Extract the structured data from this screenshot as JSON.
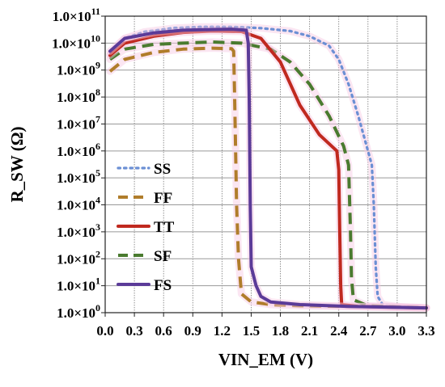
{
  "chart_data": {
    "type": "line",
    "xlabel": "VIN_EM (V)",
    "ylabel": "R_SW (Ω)",
    "xlim": [
      0.0,
      3.3
    ],
    "ylim_log10": [
      0,
      11
    ],
    "y_scale": "log",
    "x_ticks": [
      "0.0",
      "0.3",
      "0.6",
      "0.9",
      "1.2",
      "1.5",
      "1.8",
      "2.1",
      "2.4",
      "2.7",
      "3.0",
      "3.3"
    ],
    "y_ticks": [
      {
        "mant": "1.0×10",
        "exp": "0"
      },
      {
        "mant": "1.0×10",
        "exp": "1"
      },
      {
        "mant": "1.0×10",
        "exp": "2"
      },
      {
        "mant": "1.0×10",
        "exp": "3"
      },
      {
        "mant": "1.0×10",
        "exp": "4"
      },
      {
        "mant": "1.0×10",
        "exp": "5"
      },
      {
        "mant": "1.0×10",
        "exp": "6"
      },
      {
        "mant": "1.0×10",
        "exp": "7"
      },
      {
        "mant": "1.0×10",
        "exp": "8"
      },
      {
        "mant": "1.0×10",
        "exp": "9"
      },
      {
        "mant": "1.0×10",
        "exp": "10"
      },
      {
        "mant": "1.0×10",
        "exp": "11"
      }
    ],
    "grid": true,
    "legend_placement": "left-center",
    "series": [
      {
        "name": "SS",
        "color": "#6b8fd4",
        "dash": "dotted",
        "points": [
          [
            0.05,
            3800000000.0
          ],
          [
            0.2,
            15000000000.0
          ],
          [
            0.4,
            26000000000.0
          ],
          [
            0.7,
            36000000000.0
          ],
          [
            1.0,
            40000000000.0
          ],
          [
            1.3,
            40000000000.0
          ],
          [
            1.6,
            36000000000.0
          ],
          [
            1.9,
            28000000000.0
          ],
          [
            2.1,
            18000000000.0
          ],
          [
            2.3,
            8000000000.0
          ],
          [
            2.4,
            2500000000.0
          ],
          [
            2.5,
            300000000.0
          ],
          [
            2.6,
            20000000.0
          ],
          [
            2.7,
            1000000.0
          ],
          [
            2.74,
            300000.0
          ],
          [
            2.76,
            10000.0
          ],
          [
            2.78,
            50
          ],
          [
            2.8,
            4
          ],
          [
            2.85,
            2
          ],
          [
            3.0,
            1.7
          ],
          [
            3.3,
            1.5
          ]
        ]
      },
      {
        "name": "FF",
        "color": "#b07d2b",
        "dash": "dashed",
        "points": [
          [
            0.05,
            900000000.0
          ],
          [
            0.2,
            2500000000.0
          ],
          [
            0.5,
            4500000000.0
          ],
          [
            0.8,
            6000000000.0
          ],
          [
            1.1,
            6500000000.0
          ],
          [
            1.3,
            6200000000.0
          ],
          [
            1.32,
            5000000000.0
          ],
          [
            1.33,
            100000000.0
          ],
          [
            1.35,
            10000.0
          ],
          [
            1.37,
            100
          ],
          [
            1.4,
            5
          ],
          [
            1.5,
            2.5
          ],
          [
            1.7,
            2
          ],
          [
            2.0,
            1.8
          ],
          [
            2.5,
            1.7
          ],
          [
            3.3,
            1.5
          ]
        ]
      },
      {
        "name": "TT",
        "color": "#c0291f",
        "dash": "solid",
        "points": [
          [
            0.05,
            3500000000.0
          ],
          [
            0.2,
            10000000000.0
          ],
          [
            0.5,
            18000000000.0
          ],
          [
            0.8,
            25000000000.0
          ],
          [
            1.1,
            28000000000.0
          ],
          [
            1.4,
            27000000000.0
          ],
          [
            1.6,
            15000000000.0
          ],
          [
            1.8,
            2000000000.0
          ],
          [
            2.0,
            50000000.0
          ],
          [
            2.2,
            4000000.0
          ],
          [
            2.38,
            1000000.0
          ],
          [
            2.4,
            200000.0
          ],
          [
            2.41,
            1000.0
          ],
          [
            2.42,
            10
          ],
          [
            2.43,
            2
          ],
          [
            2.6,
            1.7
          ],
          [
            3.3,
            1.5
          ]
        ]
      },
      {
        "name": "SF",
        "color": "#4a7b2f",
        "dash": "dashed",
        "points": [
          [
            0.05,
            2500000000.0
          ],
          [
            0.2,
            6000000000.0
          ],
          [
            0.5,
            9000000000.0
          ],
          [
            0.8,
            10000000000.0
          ],
          [
            1.1,
            11000000000.0
          ],
          [
            1.4,
            10000000000.0
          ],
          [
            1.7,
            6000000000.0
          ],
          [
            1.9,
            2000000000.0
          ],
          [
            2.1,
            300000000.0
          ],
          [
            2.3,
            20000000.0
          ],
          [
            2.45,
            1500000.0
          ],
          [
            2.5,
            300000.0
          ],
          [
            2.52,
            1000.0
          ],
          [
            2.53,
            20
          ],
          [
            2.55,
            3
          ],
          [
            2.7,
            1.8
          ],
          [
            3.3,
            1.5
          ]
        ]
      },
      {
        "name": "FS",
        "color": "#5b3b98",
        "dash": "solid",
        "points": [
          [
            0.05,
            5000000000.0
          ],
          [
            0.2,
            15000000000.0
          ],
          [
            0.5,
            24000000000.0
          ],
          [
            0.8,
            30000000000.0
          ],
          [
            1.1,
            32000000000.0
          ],
          [
            1.3,
            33000000000.0
          ],
          [
            1.45,
            30000000000.0
          ],
          [
            1.47,
            10000000000.0
          ],
          [
            1.48,
            100000000.0
          ],
          [
            1.49,
            10000.0
          ],
          [
            1.5,
            50
          ],
          [
            1.55,
            10
          ],
          [
            1.6,
            4
          ],
          [
            1.7,
            2.5
          ],
          [
            2.0,
            2
          ],
          [
            2.5,
            1.7
          ],
          [
            3.3,
            1.5
          ]
        ]
      }
    ]
  }
}
